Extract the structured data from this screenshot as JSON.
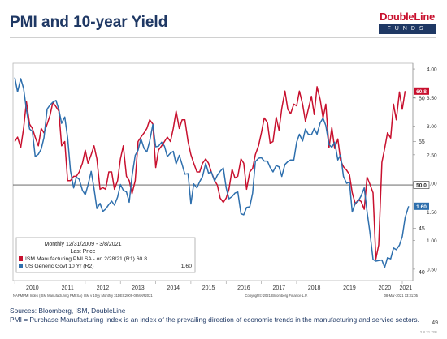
{
  "title": "PMI and 10-year Yield",
  "logo": {
    "name": "DoubleLine",
    "sub": "FUNDS"
  },
  "footer": {
    "sources": "Sources: Bloomberg, ISM, DoubleLine",
    "note": "PMI = Purchase Manufacturing Index is an index of the prevailing direction of economic trends in the manufacturing and service sectors.",
    "page_number": "49",
    "code": "2.8.21.TRL"
  },
  "chart_data": {
    "type": "line",
    "legend": {
      "header": "Monthly 12/31/2009 - 3/8/2021",
      "subheader": "Last Price",
      "entries": [
        {
          "label": "ISM Manufacturing PMI SA - on 2/28/21 (R1) 60.8"
        },
        {
          "label": "US Generic Govt 10 Yr (R2)",
          "value": "1.60"
        }
      ]
    },
    "source_left": "NAPMPMI Index (ISM Manufacturing PMI SA) ISM v 10yy  Monthly 31DEC2009-08MAR2021",
    "source_mid": "Copyright© 2021 Bloomberg Finance L.P.",
    "source_right": "08-Mar-2021 13:31:05",
    "x_ticks": [
      "2010",
      "2011",
      "2012",
      "2013",
      "2014",
      "2015",
      "2016",
      "2017",
      "2018",
      "2019",
      "2020",
      "2021"
    ],
    "y1_ticks": [
      "60",
      "55",
      "45",
      "40"
    ],
    "y2_ticks": [
      "4.00",
      "3.50",
      "3.00",
      "2.50",
      "2.00",
      "1.50",
      "1.00",
      "0.50"
    ],
    "y1_range": [
      39,
      64
    ],
    "y2_range": [
      0.3,
      4.1
    ],
    "x_range": [
      2009.95,
      2021.3
    ],
    "reference": {
      "pmi_level": 50,
      "label": "50.0"
    },
    "last_labels": {
      "pmi": "60.8",
      "yield": "1.60"
    },
    "series": [
      {
        "name": "ISM Manufacturing PMI SA",
        "color": "#c8102e",
        "axis": "y1",
        "points": [
          [
            2010.0,
            55.0
          ],
          [
            2010.08,
            55.5
          ],
          [
            2010.17,
            54.3
          ],
          [
            2010.25,
            56.5
          ],
          [
            2010.33,
            59.6
          ],
          [
            2010.42,
            57.0
          ],
          [
            2010.5,
            56.5
          ],
          [
            2010.58,
            55.5
          ],
          [
            2010.67,
            54.5
          ],
          [
            2010.75,
            56.5
          ],
          [
            2010.83,
            56.0
          ],
          [
            2010.92,
            57.0
          ],
          [
            2011.0,
            58.0
          ],
          [
            2011.08,
            59.5
          ],
          [
            2011.17,
            59.0
          ],
          [
            2011.25,
            58.5
          ],
          [
            2011.33,
            54.5
          ],
          [
            2011.42,
            55.0
          ],
          [
            2011.5,
            50.5
          ],
          [
            2011.58,
            50.5
          ],
          [
            2011.67,
            51.0
          ],
          [
            2011.75,
            51.0
          ],
          [
            2011.83,
            51.5
          ],
          [
            2011.92,
            52.5
          ],
          [
            2012.0,
            54.0
          ],
          [
            2012.08,
            52.5
          ],
          [
            2012.17,
            53.5
          ],
          [
            2012.25,
            54.5
          ],
          [
            2012.33,
            53.0
          ],
          [
            2012.42,
            49.5
          ],
          [
            2012.5,
            49.7
          ],
          [
            2012.58,
            49.5
          ],
          [
            2012.67,
            51.5
          ],
          [
            2012.75,
            51.5
          ],
          [
            2012.83,
            49.5
          ],
          [
            2012.92,
            50.5
          ],
          [
            2013.0,
            53.0
          ],
          [
            2013.08,
            54.5
          ],
          [
            2013.17,
            51.0
          ],
          [
            2013.25,
            50.5
          ],
          [
            2013.33,
            49.0
          ],
          [
            2013.42,
            50.5
          ],
          [
            2013.5,
            55.0
          ],
          [
            2013.58,
            55.5
          ],
          [
            2013.67,
            56.0
          ],
          [
            2013.75,
            56.5
          ],
          [
            2013.83,
            57.5
          ],
          [
            2013.92,
            57.0
          ],
          [
            2014.0,
            52.0
          ],
          [
            2014.08,
            54.0
          ],
          [
            2014.17,
            54.5
          ],
          [
            2014.25,
            55.0
          ],
          [
            2014.33,
            55.5
          ],
          [
            2014.42,
            55.0
          ],
          [
            2014.5,
            56.5
          ],
          [
            2014.58,
            58.5
          ],
          [
            2014.67,
            56.5
          ],
          [
            2014.75,
            57.5
          ],
          [
            2014.83,
            57.5
          ],
          [
            2014.92,
            55.0
          ],
          [
            2015.0,
            53.5
          ],
          [
            2015.08,
            52.5
          ],
          [
            2015.17,
            51.5
          ],
          [
            2015.25,
            51.5
          ],
          [
            2015.33,
            52.5
          ],
          [
            2015.42,
            53.0
          ],
          [
            2015.5,
            52.5
          ],
          [
            2015.58,
            51.5
          ],
          [
            2015.67,
            50.5
          ],
          [
            2015.75,
            50.0
          ],
          [
            2015.83,
            48.5
          ],
          [
            2015.92,
            48.0
          ],
          [
            2016.0,
            48.5
          ],
          [
            2016.08,
            49.5
          ],
          [
            2016.17,
            51.8
          ],
          [
            2016.25,
            50.8
          ],
          [
            2016.33,
            51.0
          ],
          [
            2016.42,
            53.0
          ],
          [
            2016.5,
            52.5
          ],
          [
            2016.58,
            49.5
          ],
          [
            2016.67,
            51.5
          ],
          [
            2016.75,
            51.9
          ],
          [
            2016.83,
            53.5
          ],
          [
            2016.92,
            54.5
          ],
          [
            2017.0,
            56.0
          ],
          [
            2017.08,
            57.7
          ],
          [
            2017.17,
            57.2
          ],
          [
            2017.25,
            54.8
          ],
          [
            2017.33,
            55.0
          ],
          [
            2017.42,
            57.8
          ],
          [
            2017.5,
            56.3
          ],
          [
            2017.58,
            58.8
          ],
          [
            2017.67,
            60.8
          ],
          [
            2017.75,
            58.7
          ],
          [
            2017.83,
            58.2
          ],
          [
            2017.92,
            59.3
          ],
          [
            2018.0,
            59.1
          ],
          [
            2018.08,
            60.8
          ],
          [
            2018.17,
            59.3
          ],
          [
            2018.25,
            57.3
          ],
          [
            2018.33,
            58.7
          ],
          [
            2018.42,
            60.2
          ],
          [
            2018.5,
            58.1
          ],
          [
            2018.58,
            61.3
          ],
          [
            2018.67,
            59.8
          ],
          [
            2018.75,
            57.7
          ],
          [
            2018.83,
            59.3
          ],
          [
            2018.92,
            54.3
          ],
          [
            2019.0,
            56.6
          ],
          [
            2019.08,
            54.2
          ],
          [
            2019.17,
            55.3
          ],
          [
            2019.25,
            52.8
          ],
          [
            2019.33,
            52.1
          ],
          [
            2019.42,
            51.7
          ],
          [
            2019.5,
            51.2
          ],
          [
            2019.58,
            49.1
          ],
          [
            2019.67,
            47.8
          ],
          [
            2019.75,
            48.3
          ],
          [
            2019.83,
            48.1
          ],
          [
            2019.92,
            47.2
          ],
          [
            2020.0,
            50.9
          ],
          [
            2020.08,
            50.1
          ],
          [
            2020.17,
            49.1
          ],
          [
            2020.25,
            41.5
          ],
          [
            2020.33,
            43.1
          ],
          [
            2020.42,
            52.6
          ],
          [
            2020.5,
            54.2
          ],
          [
            2020.58,
            56.0
          ],
          [
            2020.67,
            55.4
          ],
          [
            2020.75,
            59.3
          ],
          [
            2020.83,
            57.5
          ],
          [
            2020.92,
            60.7
          ],
          [
            2021.0,
            58.7
          ],
          [
            2021.08,
            60.8
          ]
        ]
      },
      {
        "name": "US Generic Govt 10 Yr",
        "color": "#2e6fad",
        "axis": "y2",
        "points": [
          [
            2010.0,
            3.85
          ],
          [
            2010.08,
            3.6
          ],
          [
            2010.17,
            3.83
          ],
          [
            2010.25,
            3.66
          ],
          [
            2010.33,
            3.29
          ],
          [
            2010.42,
            2.95
          ],
          [
            2010.5,
            2.91
          ],
          [
            2010.58,
            2.47
          ],
          [
            2010.67,
            2.51
          ],
          [
            2010.75,
            2.6
          ],
          [
            2010.83,
            2.8
          ],
          [
            2010.92,
            3.3
          ],
          [
            2011.0,
            3.37
          ],
          [
            2011.08,
            3.42
          ],
          [
            2011.17,
            3.45
          ],
          [
            2011.25,
            3.29
          ],
          [
            2011.33,
            3.05
          ],
          [
            2011.42,
            3.16
          ],
          [
            2011.5,
            2.8
          ],
          [
            2011.58,
            2.22
          ],
          [
            2011.67,
            1.92
          ],
          [
            2011.75,
            2.11
          ],
          [
            2011.83,
            2.07
          ],
          [
            2011.92,
            1.88
          ],
          [
            2012.0,
            1.8
          ],
          [
            2012.08,
            1.97
          ],
          [
            2012.17,
            2.21
          ],
          [
            2012.25,
            1.91
          ],
          [
            2012.33,
            1.56
          ],
          [
            2012.42,
            1.65
          ],
          [
            2012.5,
            1.51
          ],
          [
            2012.58,
            1.55
          ],
          [
            2012.67,
            1.63
          ],
          [
            2012.75,
            1.69
          ],
          [
            2012.83,
            1.62
          ],
          [
            2012.92,
            1.76
          ],
          [
            2013.0,
            1.98
          ],
          [
            2013.08,
            1.88
          ],
          [
            2013.17,
            1.85
          ],
          [
            2013.25,
            1.67
          ],
          [
            2013.33,
            2.13
          ],
          [
            2013.42,
            2.49
          ],
          [
            2013.5,
            2.58
          ],
          [
            2013.58,
            2.78
          ],
          [
            2013.67,
            2.61
          ],
          [
            2013.75,
            2.55
          ],
          [
            2013.83,
            2.74
          ],
          [
            2013.92,
            3.03
          ],
          [
            2014.0,
            2.64
          ],
          [
            2014.08,
            2.65
          ],
          [
            2014.17,
            2.72
          ],
          [
            2014.25,
            2.65
          ],
          [
            2014.33,
            2.47
          ],
          [
            2014.42,
            2.53
          ],
          [
            2014.5,
            2.56
          ],
          [
            2014.58,
            2.34
          ],
          [
            2014.67,
            2.49
          ],
          [
            2014.75,
            2.33
          ],
          [
            2014.83,
            2.16
          ],
          [
            2014.92,
            2.17
          ],
          [
            2015.0,
            1.64
          ],
          [
            2015.08,
            1.99
          ],
          [
            2015.17,
            1.92
          ],
          [
            2015.25,
            2.03
          ],
          [
            2015.33,
            2.12
          ],
          [
            2015.42,
            2.35
          ],
          [
            2015.5,
            2.18
          ],
          [
            2015.58,
            2.2
          ],
          [
            2015.67,
            2.04
          ],
          [
            2015.75,
            2.14
          ],
          [
            2015.83,
            2.21
          ],
          [
            2015.92,
            2.27
          ],
          [
            2016.0,
            1.92
          ],
          [
            2016.08,
            1.73
          ],
          [
            2016.17,
            1.77
          ],
          [
            2016.25,
            1.83
          ],
          [
            2016.33,
            1.85
          ],
          [
            2016.42,
            1.47
          ],
          [
            2016.5,
            1.45
          ],
          [
            2016.58,
            1.58
          ],
          [
            2016.67,
            1.59
          ],
          [
            2016.75,
            1.83
          ],
          [
            2016.83,
            2.38
          ],
          [
            2016.92,
            2.44
          ],
          [
            2017.0,
            2.45
          ],
          [
            2017.08,
            2.39
          ],
          [
            2017.17,
            2.39
          ],
          [
            2017.25,
            2.28
          ],
          [
            2017.33,
            2.2
          ],
          [
            2017.42,
            2.31
          ],
          [
            2017.5,
            2.29
          ],
          [
            2017.58,
            2.12
          ],
          [
            2017.67,
            2.33
          ],
          [
            2017.75,
            2.38
          ],
          [
            2017.83,
            2.41
          ],
          [
            2017.92,
            2.41
          ],
          [
            2018.0,
            2.72
          ],
          [
            2018.08,
            2.86
          ],
          [
            2018.17,
            2.74
          ],
          [
            2018.25,
            2.95
          ],
          [
            2018.33,
            2.86
          ],
          [
            2018.42,
            2.85
          ],
          [
            2018.5,
            2.96
          ],
          [
            2018.58,
            2.86
          ],
          [
            2018.67,
            3.06
          ],
          [
            2018.75,
            3.14
          ],
          [
            2018.83,
            3.01
          ],
          [
            2018.92,
            2.68
          ],
          [
            2019.0,
            2.63
          ],
          [
            2019.08,
            2.72
          ],
          [
            2019.17,
            2.41
          ],
          [
            2019.25,
            2.5
          ],
          [
            2019.33,
            2.12
          ],
          [
            2019.42,
            2.0
          ],
          [
            2019.5,
            2.02
          ],
          [
            2019.58,
            1.5
          ],
          [
            2019.67,
            1.66
          ],
          [
            2019.75,
            1.69
          ],
          [
            2019.83,
            1.78
          ],
          [
            2019.92,
            1.92
          ],
          [
            2020.0,
            1.51
          ],
          [
            2020.08,
            1.15
          ],
          [
            2020.17,
            0.67
          ],
          [
            2020.25,
            0.64
          ],
          [
            2020.33,
            0.65
          ],
          [
            2020.42,
            0.66
          ],
          [
            2020.5,
            0.53
          ],
          [
            2020.58,
            0.7
          ],
          [
            2020.67,
            0.68
          ],
          [
            2020.75,
            0.87
          ],
          [
            2020.83,
            0.84
          ],
          [
            2020.92,
            0.92
          ],
          [
            2021.0,
            1.07
          ],
          [
            2021.08,
            1.4
          ],
          [
            2021.18,
            1.6
          ]
        ]
      }
    ]
  }
}
